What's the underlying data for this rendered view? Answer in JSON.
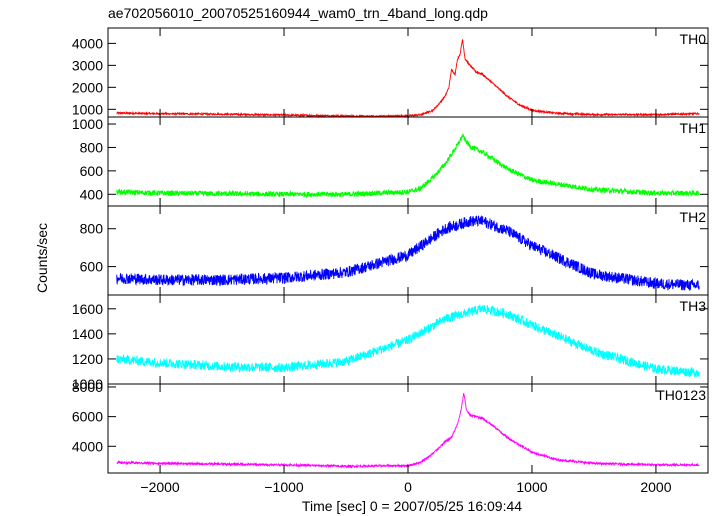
{
  "chart_data": {
    "type": "line",
    "title": "ae702056010_20070525160944_wam0_trn_4band_long.qdp",
    "xlabel": "Time [sec] 0 = 2007/05/25 16:09:44",
    "ylabel": "Counts/sec",
    "xlim": [
      -2420,
      2420
    ],
    "x_ticks": [
      -2000,
      -1000,
      0,
      1000,
      2000
    ],
    "x_tick_labels": [
      "−2000",
      "−1000",
      "0",
      "1000",
      "2000"
    ],
    "grid": false,
    "panels": [
      {
        "name": "TH0",
        "color": "#ff0000",
        "ylim": [
          650,
          4700
        ],
        "y_ticks": [
          1000,
          2000,
          3000,
          4000
        ],
        "y_tick_labels": [
          "1000",
          "2000",
          "3000",
          "4000"
        ],
        "noise": 40,
        "x": [
          -2350,
          -2000,
          -1500,
          -1000,
          -600,
          -300,
          0,
          100,
          200,
          250,
          300,
          330,
          350,
          380,
          400,
          420,
          440,
          460,
          500,
          550,
          600,
          700,
          800,
          900,
          1000,
          1200,
          1500,
          2000,
          2350
        ],
        "y": [
          830,
          800,
          780,
          740,
          700,
          680,
          700,
          750,
          950,
          1250,
          1600,
          2000,
          2800,
          2600,
          3300,
          3500,
          4200,
          3300,
          3000,
          2700,
          2600,
          2100,
          1600,
          1200,
          950,
          820,
          760,
          760,
          800
        ]
      },
      {
        "name": "TH1",
        "color": "#00ff00",
        "ylim": [
          300,
          1060
        ],
        "y_ticks": [
          400,
          600,
          800,
          1000
        ],
        "y_tick_labels": [
          "400",
          "600",
          "800",
          "1000"
        ],
        "noise": 22,
        "x": [
          -2350,
          -2000,
          -1000,
          -500,
          0,
          100,
          200,
          300,
          400,
          440,
          470,
          500,
          600,
          800,
          1000,
          1500,
          2000,
          2350
        ],
        "y": [
          420,
          410,
          400,
          400,
          420,
          450,
          540,
          660,
          820,
          900,
          850,
          810,
          760,
          620,
          520,
          440,
          410,
          410
        ]
      },
      {
        "name": "TH2",
        "color": "#0000ff",
        "ylim": [
          450,
          920
        ],
        "y_ticks": [
          600,
          800
        ],
        "y_tick_labels": [
          "600",
          "800"
        ],
        "noise": 30,
        "x": [
          -2350,
          -2000,
          -1500,
          -1000,
          -500,
          0,
          300,
          500,
          600,
          800,
          1000,
          1500,
          2000,
          2350
        ],
        "y": [
          540,
          530,
          530,
          540,
          570,
          660,
          800,
          840,
          840,
          790,
          710,
          560,
          510,
          500
        ]
      },
      {
        "name": "TH3",
        "color": "#00ffff",
        "ylim": [
          1000,
          1710
        ],
        "y_ticks": [
          1000,
          1200,
          1400,
          1600
        ],
        "y_tick_labels": [
          "1000",
          "1200",
          "1400",
          "1600"
        ],
        "noise": 38,
        "x": [
          -2350,
          -2000,
          -1500,
          -1000,
          -500,
          0,
          300,
          600,
          800,
          1000,
          1500,
          2000,
          2350
        ],
        "y": [
          1200,
          1170,
          1140,
          1130,
          1180,
          1350,
          1520,
          1600,
          1560,
          1470,
          1260,
          1120,
          1090
        ]
      },
      {
        "name": "TH0123",
        "color": "#ff00ff",
        "ylim": [
          2200,
          8200
        ],
        "y_ticks": [
          4000,
          6000,
          8000
        ],
        "y_tick_labels": [
          "4000",
          "6000",
          "8000"
        ],
        "noise": 70,
        "x": [
          -2350,
          -2000,
          -1500,
          -1000,
          -500,
          0,
          100,
          200,
          300,
          350,
          400,
          430,
          450,
          470,
          500,
          600,
          700,
          800,
          1000,
          1200,
          1500,
          2000,
          2350
        ],
        "y": [
          2900,
          2850,
          2800,
          2750,
          2650,
          2700,
          2900,
          3500,
          4300,
          4600,
          5500,
          6500,
          7600,
          6500,
          6100,
          5900,
          5300,
          4600,
          3600,
          3100,
          2850,
          2750,
          2750
        ]
      }
    ]
  }
}
